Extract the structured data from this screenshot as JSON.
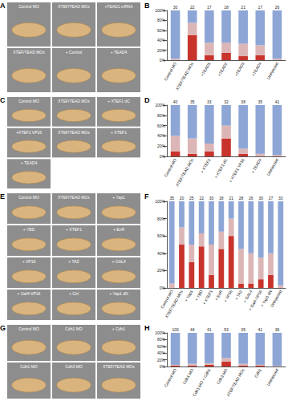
{
  "photo_panels": [
    {
      "panel": "A",
      "labels": [
        "Control MO",
        "XTEF/TEAD MOs",
        "+TEAD1 mRNA",
        "XTEF/TEAD MOs",
        "+ Control",
        "+ TEAD4"
      ]
    },
    {
      "panel": "C",
      "labels": [
        "Control MO",
        "XTEF/TEAD MOs",
        "+ XTEF1 dC",
        "+XTEF1 VP16",
        "XTEF/TEAD MOs",
        "+ XTEF1",
        "+ TEAD4"
      ]
    },
    {
      "panel": "E",
      "labels": [
        "Control MO",
        "XTEF/TEAD MOs",
        "+ Yap1",
        "+ YBD",
        "+ XTEF1",
        "+ EnR",
        "+ VP16",
        "+ TAZ",
        "+ GAL4",
        "+ Gal4-VP16",
        "+ Ctrl",
        "+ Yap1 dN"
      ]
    },
    {
      "panel": "G",
      "labels": [
        "Control MO",
        "Cdh1 MO",
        "+ Cdh1",
        "Cdh1 MO",
        "Cdh3 MO",
        "XTEF/TEAD MOs"
      ]
    }
  ],
  "chart_data": [
    {
      "panel": "B",
      "type": "bar",
      "stacked": true,
      "grid": false,
      "categories": [
        "Control MO",
        "XTEF/TEAD MOs",
        "+TEAD1",
        "+TEAD2",
        "+TEAD3",
        "+TEAD4",
        "Uninjected"
      ],
      "n": [
        30,
        22,
        17,
        18,
        21,
        17,
        26
      ],
      "series": [
        {
          "color": "#c8342c",
          "values": [
            0,
            50,
            10,
            15,
            8,
            10,
            0
          ]
        },
        {
          "color": "#dcb6b6",
          "values": [
            3,
            25,
            25,
            20,
            25,
            20,
            3
          ]
        },
        {
          "color": "#8ea6d6",
          "values": [
            97,
            25,
            65,
            65,
            67,
            70,
            97
          ]
        }
      ],
      "ylim": [
        0,
        100
      ],
      "yticks": [
        {
          "value": 0,
          "label": "0%"
        },
        {
          "value": 20,
          "label": "20%"
        },
        {
          "value": 40,
          "label": "40%"
        },
        {
          "value": 60,
          "label": "60%"
        },
        {
          "value": 80,
          "label": "80%"
        },
        {
          "value": 100,
          "label": "100%"
        }
      ]
    },
    {
      "panel": "D",
      "type": "bar",
      "stacked": true,
      "grid": false,
      "categories": [
        "Control MO",
        "XTEF/TEAD MOs",
        "+ XTEF1",
        "+ XTEF1 dC",
        "+ XTEF1 VP16",
        "+ TEAD4",
        "Uninjected"
      ],
      "n": [
        40,
        35,
        33,
        32,
        38,
        35,
        41
      ],
      "series": [
        {
          "color": "#c8342c",
          "values": [
            10,
            5,
            10,
            35,
            5,
            0,
            0
          ]
        },
        {
          "color": "#dcb6b6",
          "values": [
            30,
            30,
            15,
            25,
            10,
            5,
            3
          ]
        },
        {
          "color": "#8ea6d6",
          "values": [
            60,
            65,
            75,
            40,
            85,
            95,
            97
          ]
        }
      ],
      "ylim": [
        0,
        100
      ],
      "yticks": [
        {
          "value": 0,
          "label": "0%"
        },
        {
          "value": 20,
          "label": "20%"
        },
        {
          "value": 40,
          "label": "40%"
        },
        {
          "value": 60,
          "label": "60%"
        },
        {
          "value": 80,
          "label": "80%"
        },
        {
          "value": 100,
          "label": "100%"
        }
      ]
    },
    {
      "panel": "F",
      "type": "bar",
      "stacked": true,
      "grid": false,
      "categories": [
        "Control MO",
        "XTEF/TEAD MOs",
        "+ Yap1",
        "+ YBD",
        "+ XTEF1",
        "+ EnR",
        "+ VP16",
        "+ TAZ",
        "+ GAL4",
        "+ Gal4-VP16",
        "+ Yap1 dN",
        "Uninjected"
      ],
      "n": [
        35,
        20,
        25,
        22,
        30,
        18,
        21,
        28,
        26,
        30,
        27,
        33
      ],
      "series": [
        {
          "color": "#c8342c",
          "values": [
            0,
            50,
            30,
            48,
            15,
            45,
            60,
            5,
            5,
            10,
            15,
            0
          ]
        },
        {
          "color": "#dcb6b6",
          "values": [
            5,
            20,
            20,
            15,
            35,
            20,
            20,
            40,
            35,
            25,
            25,
            3
          ]
        },
        {
          "color": "#8ea6d6",
          "values": [
            95,
            30,
            50,
            37,
            50,
            35,
            20,
            55,
            60,
            65,
            60,
            97
          ]
        }
      ],
      "ylim": [
        0,
        100
      ],
      "yticks": [
        {
          "value": 0,
          "label": "0%"
        },
        {
          "value": 20,
          "label": "20%"
        },
        {
          "value": 40,
          "label": "40%"
        },
        {
          "value": 60,
          "label": "60%"
        },
        {
          "value": 80,
          "label": "80%"
        },
        {
          "value": 100,
          "label": "100%"
        }
      ]
    },
    {
      "panel": "H",
      "type": "bar",
      "stacked": true,
      "grid": false,
      "categories": [
        "Control MO",
        "Cdh1 MO",
        "Cdh1 MO + Cdh1",
        "Cdh3 MO",
        "XTEF/TEAD MOs",
        "Cdh1",
        "Uninjected"
      ],
      "n": [
        100,
        44,
        41,
        53,
        35,
        41,
        36
      ],
      "series": [
        {
          "color": "#c8342c",
          "values": [
            3,
            3,
            5,
            15,
            3,
            3,
            0
          ]
        },
        {
          "color": "#dcb6b6",
          "values": [
            2,
            5,
            5,
            10,
            5,
            2,
            2
          ]
        },
        {
          "color": "#8ea6d6",
          "values": [
            95,
            92,
            90,
            75,
            92,
            95,
            98
          ]
        }
      ],
      "ylim": [
        0,
        100
      ],
      "yticks": [
        {
          "value": 0,
          "label": "0%"
        },
        {
          "value": 20,
          "label": "20%"
        },
        {
          "value": 40,
          "label": "40%"
        },
        {
          "value": 60,
          "label": "60%"
        },
        {
          "value": 80,
          "label": "80%"
        },
        {
          "value": 100,
          "label": "100%"
        }
      ]
    }
  ]
}
